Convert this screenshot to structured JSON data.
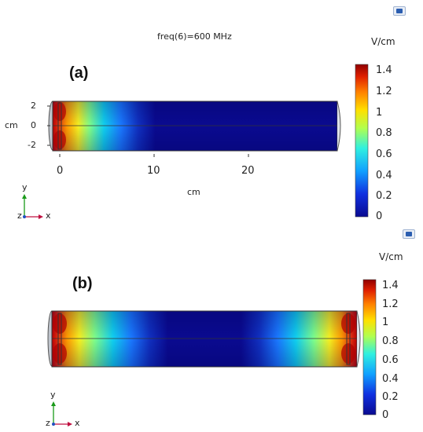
{
  "panel_a": {
    "label": "(a)",
    "title": "freq(6)=600 MHz",
    "unit": "V/cm",
    "axis_y_unit": "cm",
    "axis_x_unit": "cm",
    "y_ticks": [
      "2",
      "0",
      "-2"
    ],
    "x_ticks": [
      "0",
      "10",
      "20"
    ],
    "colorbar_ticks": [
      "1.4",
      "1.2",
      "1",
      "0.8",
      "0.6",
      "0.4",
      "0.2",
      "0"
    ],
    "triad": {
      "y": "y",
      "z": "z",
      "x": "x"
    }
  },
  "panel_b": {
    "label": "(b)",
    "unit": "V/cm",
    "colorbar_ticks": [
      "1.4",
      "1.2",
      "1",
      "0.8",
      "0.6",
      "0.4",
      "0.2",
      "0"
    ],
    "triad": {
      "y": "y",
      "z": "z",
      "x": "x"
    }
  },
  "chart_data": [
    {
      "type": "heatmap",
      "title": "freq(6)=600 MHz",
      "xlabel": "cm",
      "ylabel": "cm",
      "x_ticks": [
        0,
        10,
        20
      ],
      "y_ticks": [
        2,
        0,
        -2
      ],
      "colorbar": {
        "label": "V/cm",
        "min": 0,
        "max": 1.4,
        "ticks": [
          1.4,
          1.2,
          1,
          0.8,
          0.6,
          0.4,
          0.2,
          0
        ],
        "colormap": "jet"
      },
      "field_description": "Electric field is highest (~1.4 V/cm) at the left end near x=0 and decays to ~0 by x≈10 cm; the rest of the cylinder is ~0.",
      "profile_x_cm": [
        0,
        2,
        4,
        6,
        8,
        10,
        20,
        28
      ],
      "profile_value": [
        1.4,
        1.0,
        0.7,
        0.4,
        0.15,
        0.02,
        0.0,
        0.0
      ]
    },
    {
      "type": "heatmap",
      "colorbar": {
        "label": "V/cm",
        "min": 0,
        "max": 1.4,
        "ticks": [
          1.4,
          1.2,
          1,
          0.8,
          0.6,
          0.4,
          0.2,
          0
        ],
        "colormap": "jet"
      },
      "field_description": "Electric field is highest (~1.4 V/cm) at both ends of the cylinder and decays toward the middle where it is ~0."
    }
  ]
}
